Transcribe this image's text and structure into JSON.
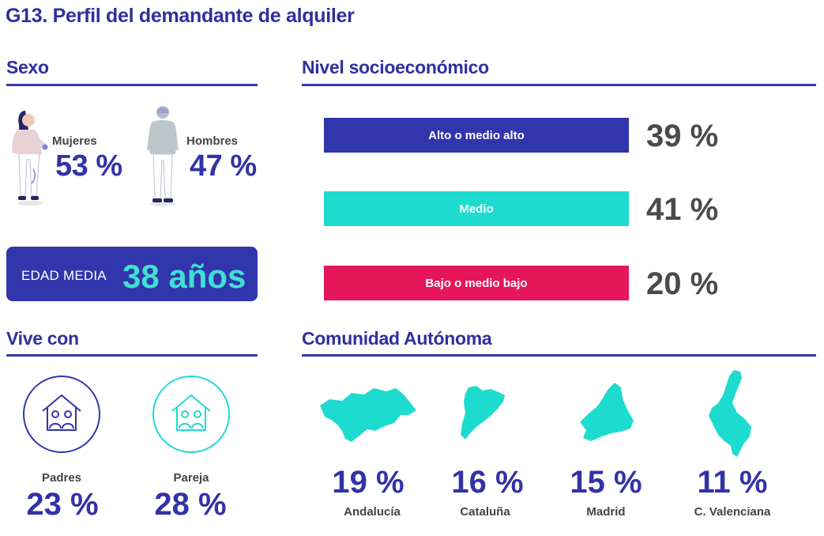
{
  "title": "G13. Perfil del demandante de alquiler",
  "colors": {
    "navy": "#3136ad",
    "teal": "#1ddbcf",
    "crimson": "#e5175a",
    "value_gray": "#4a4a4a"
  },
  "sexo": {
    "heading": "Sexo",
    "women": {
      "label": "Mujeres",
      "value": "53 %",
      "icon": "woman-figure-icon"
    },
    "men": {
      "label": "Hombres",
      "value": "47 %",
      "icon": "man-figure-icon"
    }
  },
  "edad": {
    "label": "EDAD MEDIA",
    "value": "38 años"
  },
  "nivel": {
    "heading": "Nivel socioeconómico",
    "bars": [
      {
        "label": "Alto o medio alto",
        "value": "39 %",
        "color": "#3136ad"
      },
      {
        "label": "Medio",
        "value": "41 %",
        "color": "#1ddbcf"
      },
      {
        "label": "Bajo o medio bajo",
        "value": "20 %",
        "color": "#e5175a"
      }
    ]
  },
  "vive": {
    "heading": "Vive con",
    "items": [
      {
        "label": "Padres",
        "value": "23 %",
        "icon": "house-people-icon",
        "color": "#3136ad"
      },
      {
        "label": "Pareja",
        "value": "28 %",
        "icon": "house-couple-icon",
        "color": "#1ddbcf"
      }
    ]
  },
  "comunidad": {
    "heading": "Comunidad Autónoma",
    "items": [
      {
        "label": "Andalucía",
        "value": "19 %",
        "icon": "andalucia-map-icon"
      },
      {
        "label": "Cataluña",
        "value": "16 %",
        "icon": "cataluna-map-icon"
      },
      {
        "label": "Madrid",
        "value": "15 %",
        "icon": "madrid-map-icon"
      },
      {
        "label": "C. Valenciana",
        "value": "11 %",
        "icon": "valencia-map-icon"
      }
    ]
  },
  "chart_data": [
    {
      "type": "table",
      "title": "Sexo",
      "categories": [
        "Mujeres",
        "Hombres"
      ],
      "values": [
        53,
        47
      ]
    },
    {
      "type": "bar",
      "title": "Nivel socioeconómico",
      "categories": [
        "Alto o medio alto",
        "Medio",
        "Bajo o medio bajo"
      ],
      "values": [
        39,
        41,
        20
      ]
    },
    {
      "type": "table",
      "title": "Vive con",
      "categories": [
        "Padres",
        "Pareja"
      ],
      "values": [
        23,
        28
      ]
    },
    {
      "type": "table",
      "title": "Comunidad Autónoma",
      "categories": [
        "Andalucía",
        "Cataluña",
        "Madrid",
        "C. Valenciana"
      ],
      "values": [
        19,
        16,
        15,
        11
      ]
    }
  ]
}
